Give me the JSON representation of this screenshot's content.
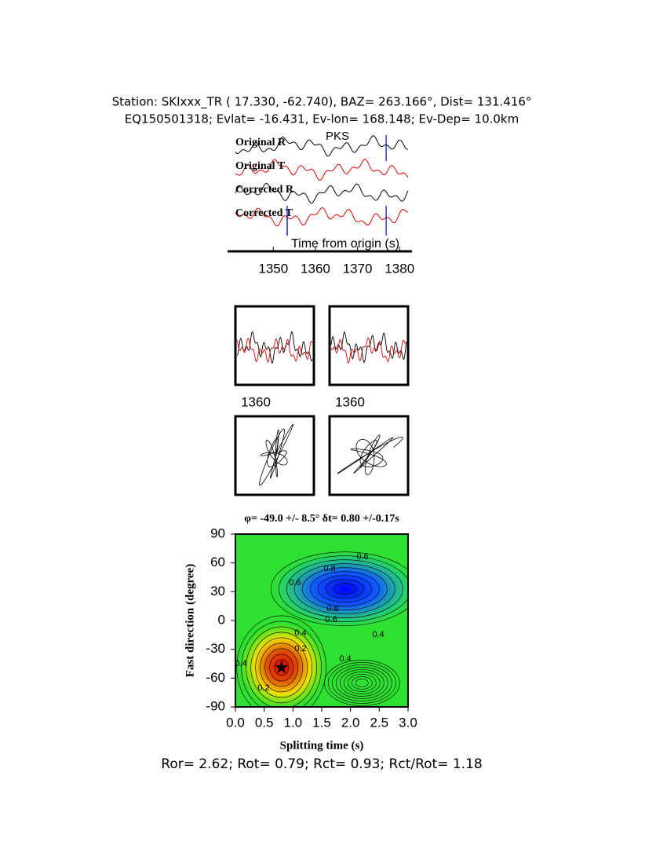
{
  "header": {
    "line1": "Station: SKIxxx_TR (  17.330,  -62.740), BAZ=  263.166°, Dist=  131.416°",
    "line2": "EQ150501318; Evlat= -16.431, Ev-lon= 168.148; Ev-Dep= 10.0km"
  },
  "traces": {
    "labels": [
      "Original R",
      "Original T",
      "Corrected R",
      "Corrected T"
    ],
    "phase": "PKS",
    "xlabel": "Time from origin (s)",
    "xlim": [
      1341,
      1382
    ],
    "xticks": [
      1350,
      1360,
      1370,
      1380
    ],
    "window": [
      1353.3,
      1376.8
    ]
  },
  "windows": {
    "xticks": [
      1360,
      1360
    ]
  },
  "grid_search": {
    "title": "φ= -49.0 +/- 8.5° δt= 0.80 +/-0.17s",
    "xlabel": "Splitting time (s)",
    "ylabel": "Fast direction (degree)",
    "xlim": [
      0,
      3
    ],
    "xticks": [
      {
        "value": 0,
        "label": "0.0"
      },
      {
        "value": 0.5,
        "label": "0.5"
      },
      {
        "value": 1,
        "label": "1.0"
      },
      {
        "value": 1.5,
        "label": "1.5"
      },
      {
        "value": 2,
        "label": "2.0"
      },
      {
        "value": 2.5,
        "label": "2.5"
      },
      {
        "value": 3,
        "label": "3.0"
      }
    ],
    "ylim": [
      -90,
      90
    ],
    "yticks": [
      -90,
      -60,
      -30,
      0,
      30,
      60,
      90
    ],
    "best": [
      0.8,
      -49
    ],
    "contour_labels": [
      0.6,
      0.8,
      0.6,
      0.8,
      0.6,
      0.4,
      0.4,
      0.2,
      0.4,
      0.4,
      0.2
    ]
  },
  "footer": "Ror= 2.62; Rot= 0.79; Rct= 0.93; Rct/Rot= 1.18"
}
